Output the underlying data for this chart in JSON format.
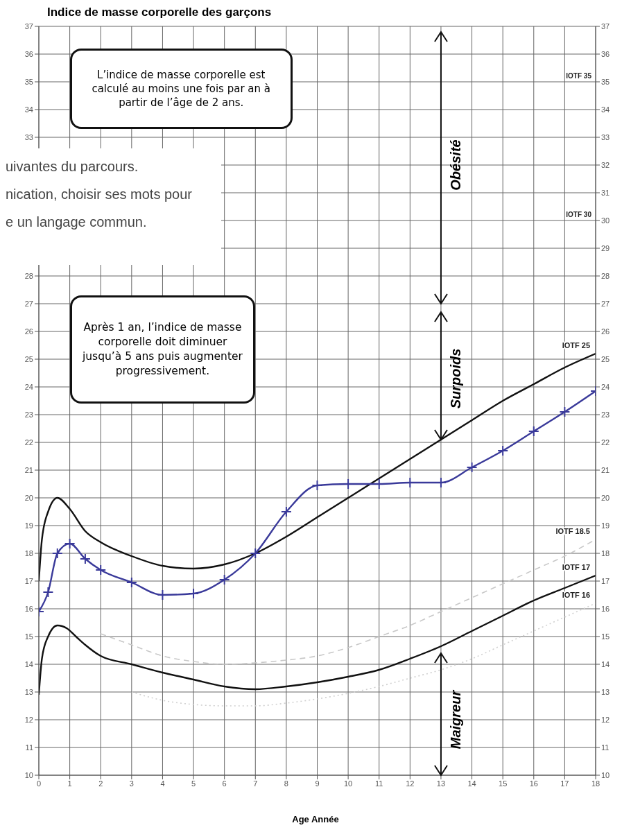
{
  "chart_data": {
    "type": "line",
    "title": "Indice de masse corporelle des garçons",
    "xlabel": "Age  Année",
    "series": [
      {
        "name": "IOTF 25",
        "color": "#111111",
        "marker": "none",
        "line_style": "solid",
        "x": [
          0,
          0.1,
          0.3,
          0.6,
          1,
          1.5,
          2,
          3,
          4,
          5,
          6,
          7,
          8,
          9,
          10,
          11,
          12,
          13,
          14,
          15,
          16,
          17,
          18
        ],
        "values": [
          17,
          18.5,
          19.5,
          20,
          19.6,
          18.8,
          18.4,
          17.9,
          17.55,
          17.45,
          17.6,
          18,
          18.6,
          19.3,
          20,
          20.7,
          21.4,
          22.1,
          22.8,
          23.5,
          24.1,
          24.7,
          25.2
        ]
      },
      {
        "name": "IOTF 18.5",
        "color": "#c8c8c8",
        "marker": "none",
        "line_style": "dashed",
        "x": [
          2,
          3,
          4,
          5,
          6,
          7,
          8,
          9,
          10,
          11,
          12,
          13,
          14,
          15,
          16,
          17,
          18
        ],
        "values": [
          15.1,
          14.7,
          14.3,
          14.1,
          14,
          14.05,
          14.15,
          14.3,
          14.6,
          15,
          15.4,
          15.9,
          16.4,
          16.9,
          17.4,
          17.9,
          18.5
        ]
      },
      {
        "name": "IOTF 17",
        "color": "#111111",
        "marker": "none",
        "line_style": "solid",
        "x": [
          0,
          0.1,
          0.3,
          0.6,
          0.9,
          1.2,
          1.5,
          2,
          3,
          4,
          5,
          6,
          7,
          8,
          9,
          10,
          11,
          12,
          13,
          14,
          15,
          16,
          17,
          18
        ],
        "values": [
          12.9,
          14.2,
          15,
          15.4,
          15.3,
          15,
          14.7,
          14.3,
          14,
          13.7,
          13.45,
          13.2,
          13.1,
          13.2,
          13.35,
          13.55,
          13.8,
          14.2,
          14.65,
          15.2,
          15.75,
          16.3,
          16.75,
          17.2
        ]
      },
      {
        "name": "IOTF 16",
        "color": "#d0d0d0",
        "marker": "none",
        "line_style": "dotted",
        "x": [
          3,
          4,
          5,
          6,
          7,
          8,
          9,
          10,
          11,
          12,
          13,
          14,
          15,
          16,
          17,
          18
        ],
        "values": [
          13,
          12.7,
          12.55,
          12.5,
          12.5,
          12.6,
          12.75,
          12.95,
          13.2,
          13.5,
          13.8,
          14.2,
          14.7,
          15.2,
          15.7,
          16.2
        ]
      },
      {
        "color": "#3a3a9a",
        "marker": "cross",
        "line_style": "solid",
        "x": [
          0,
          0.3,
          0.6,
          1,
          1.5,
          2,
          3,
          4,
          5,
          6,
          7,
          8,
          9,
          10,
          11,
          12,
          13,
          14,
          15,
          16,
          17,
          18
        ],
        "values": [
          15.9,
          16.6,
          18,
          18.35,
          17.8,
          17.4,
          16.95,
          16.5,
          16.55,
          17.05,
          18,
          19.5,
          20.45,
          20.5,
          20.5,
          20.55,
          20.55,
          21.1,
          21.7,
          22.4,
          23.1,
          23.85
        ]
      }
    ],
    "xlim": [
      0,
      18
    ],
    "xticks": [
      0,
      1,
      2,
      3,
      4,
      5,
      6,
      7,
      8,
      9,
      10,
      11,
      12,
      13,
      14,
      15,
      16,
      17,
      18
    ],
    "ylim": [
      10,
      37
    ],
    "yticks": [
      10,
      11,
      12,
      13,
      14,
      15,
      16,
      17,
      18,
      19,
      20,
      21,
      22,
      23,
      24,
      25,
      26,
      27,
      28,
      33,
      34,
      35,
      36,
      37
    ],
    "y2lim": [
      10,
      37
    ],
    "y2ticks": [
      10,
      11,
      12,
      13,
      14,
      15,
      16,
      17,
      18,
      19,
      20,
      21,
      22,
      23,
      24,
      25,
      26,
      27,
      28,
      29,
      30,
      31,
      32,
      33,
      34,
      35,
      36,
      37
    ],
    "grid": true,
    "annotations": [
      "L’indice de masse corporelle est calculé au moins une fois par an à partir de l’âge de 2 ans.",
      "Après 1 an, l’indice de masse corporelle doit diminuer jusqu’à 5 ans puis augmenter progressivement.",
      "uivantes du parcours.",
      "nication, choisir ses mots pour",
      "e un langage commun.",
      "IOTF 35",
      "IOTF 30",
      "Obésité",
      "Surpoids",
      "Maigreur"
    ]
  }
}
